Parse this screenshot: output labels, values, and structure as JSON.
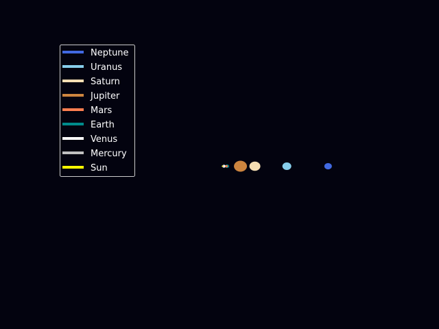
{
  "chart_data": {
    "type": "scatter",
    "title": "",
    "xlabel": "",
    "ylabel": "",
    "xlim": [
      -33,
      33
    ],
    "ylim": [
      -24,
      24
    ],
    "axes_visible": false,
    "grid": false,
    "background": "#03030f",
    "legend": {
      "placement": "upper-left",
      "frame": true,
      "frame_color": "#cccccc"
    },
    "series": [
      {
        "name": "Neptune",
        "color": "#4169e1",
        "x": 20.0,
        "y": 0,
        "size": 11
      },
      {
        "name": "Uranus",
        "color": "#87ceeb",
        "x": 12.0,
        "y": 0,
        "size": 13
      },
      {
        "name": "Saturn",
        "color": "#f5deb3",
        "x": 5.8,
        "y": 0,
        "size": 16
      },
      {
        "name": "Jupiter",
        "color": "#cd853f",
        "x": 3.0,
        "y": 0,
        "size": 19
      },
      {
        "name": "Mars",
        "color": "#ff7f50",
        "x": 0.28,
        "y": 0,
        "size": 4
      },
      {
        "name": "Earth",
        "color": "#008b8b",
        "x": 0.4,
        "y": 0,
        "size": 6
      },
      {
        "name": "Venus",
        "color": "#ffffff",
        "x": -0.2,
        "y": 0,
        "size": 5
      },
      {
        "name": "Mercury",
        "color": "#c0c0c0",
        "x": -0.4,
        "y": 0,
        "size": 3
      },
      {
        "name": "Sun",
        "color": "#ffff00",
        "x": -0.5,
        "y": 0,
        "size": 2
      }
    ]
  }
}
